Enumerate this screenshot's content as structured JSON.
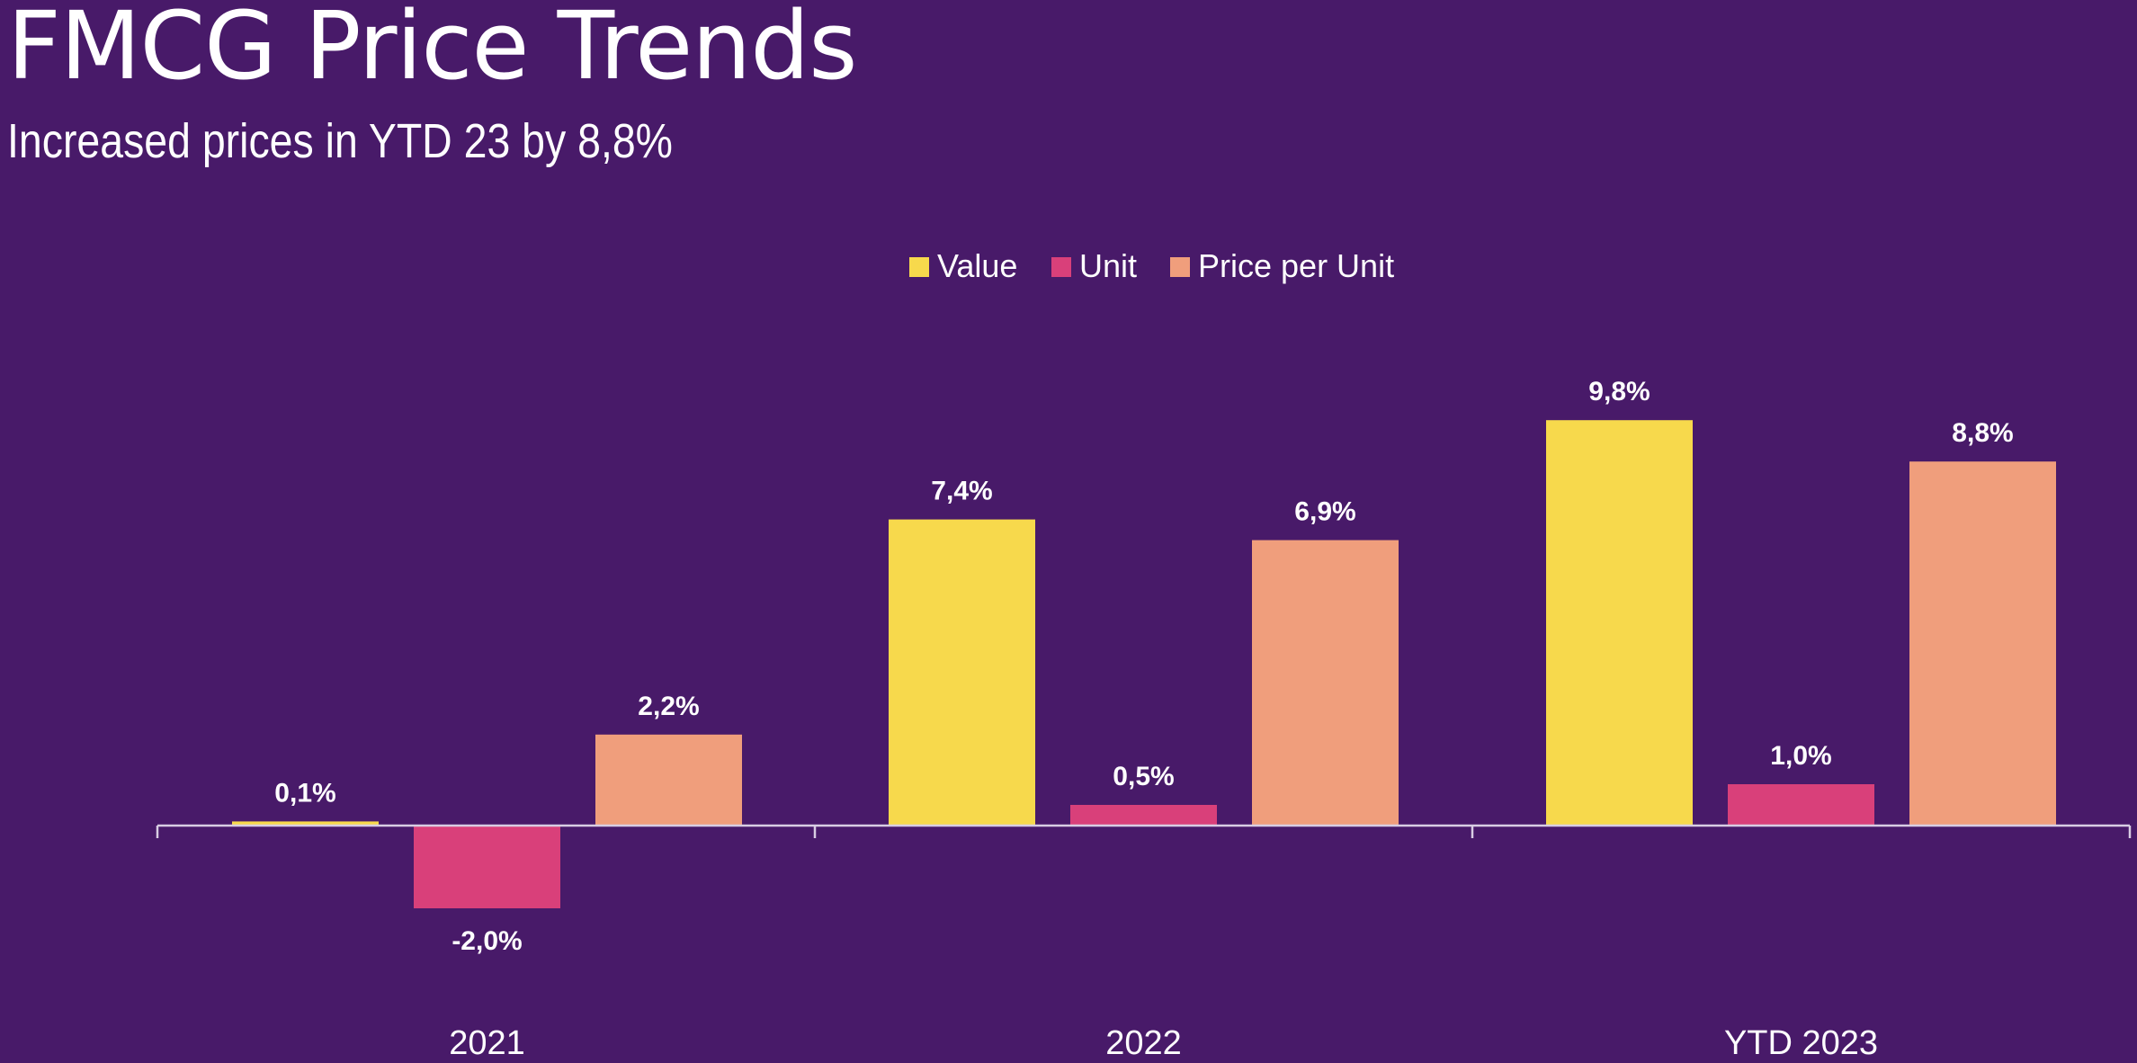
{
  "title": "FMCG Price Trends",
  "subtitle": "Increased prices in YTD 23 by 8,8%",
  "chart_data": {
    "type": "bar",
    "categories": [
      "2021",
      "2022",
      "YTD 2023"
    ],
    "series": [
      {
        "name": "Value",
        "color": "#f7d94c",
        "values": [
          0.1,
          7.4,
          9.8
        ],
        "labels": [
          "0,1%",
          "7,4%",
          "9,8%"
        ]
      },
      {
        "name": "Unit",
        "color": "#d9407a",
        "values": [
          -2.0,
          0.5,
          1.0
        ],
        "labels": [
          "-2,0%",
          "0,5%",
          "1,0%"
        ]
      },
      {
        "name": "Price per Unit",
        "color": "#f09e7c",
        "values": [
          2.2,
          6.9,
          8.8
        ],
        "labels": [
          "2,2%",
          "6,9%",
          "8,8%"
        ]
      }
    ],
    "title": "FMCG Price Trends",
    "xlabel": "",
    "ylabel": "",
    "legend_position": "top-center",
    "grid": false
  },
  "colors": {
    "background": "#481a69",
    "axis": "#d8cde3",
    "text": "#ffffff"
  }
}
